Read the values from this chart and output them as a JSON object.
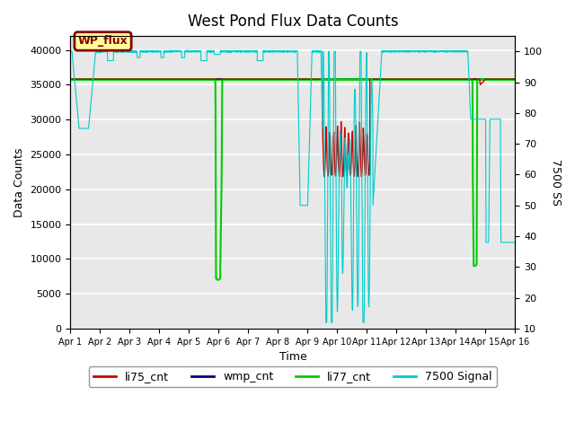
{
  "title": "West Pond Flux Data Counts",
  "xlabel": "Time",
  "ylabel_left": "Data Counts",
  "ylabel_right": "7500 SS",
  "ylim_left": [
    0,
    42000
  ],
  "ylim_right": [
    10,
    105
  ],
  "xlim": [
    0,
    15
  ],
  "xtick_labels": [
    "Apr 1",
    "Apr 2",
    "Apr 3",
    "Apr 4",
    "Apr 5",
    "Apr 6",
    "Apr 7",
    "Apr 8",
    "Apr 9",
    "Apr 10",
    "Apr 11",
    "Apr 12",
    "Apr 13",
    "Apr 14",
    "Apr 15",
    "Apr 16"
  ],
  "ytick_left": [
    0,
    5000,
    10000,
    15000,
    20000,
    25000,
    30000,
    35000,
    40000
  ],
  "ytick_right": [
    10,
    20,
    30,
    40,
    50,
    60,
    70,
    80,
    90,
    100
  ],
  "bg_color": "#e8e8e8",
  "wp_flux_box_color": "#ffff99",
  "wp_flux_text_color": "#8b0000",
  "li75_color": "#cc0000",
  "wmp_color": "#000080",
  "li77_color": "#00cc00",
  "signal7500_color": "#00cccc",
  "hline_y": 35800,
  "hline_color": "#00cc00",
  "grid_color": "#ffffff"
}
